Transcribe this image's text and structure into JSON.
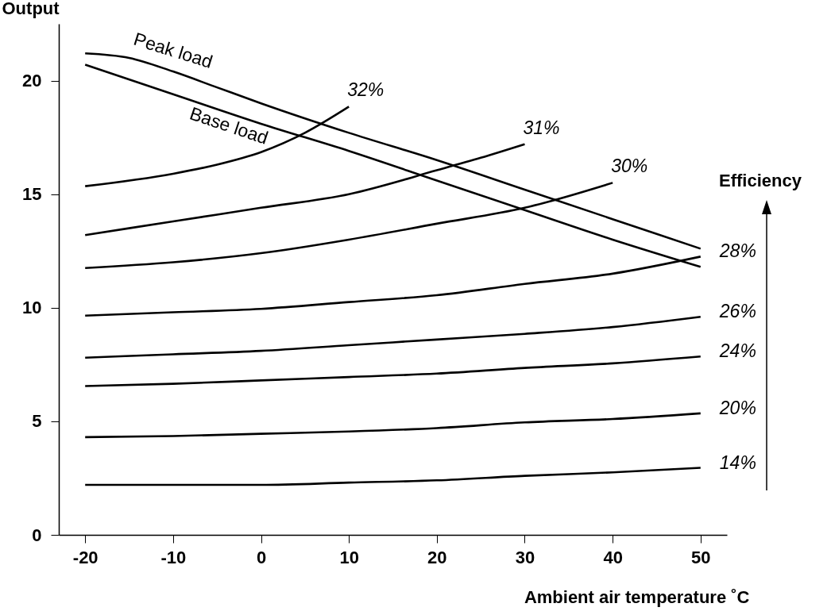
{
  "chart_data": {
    "type": "line",
    "xlabel": "Ambient air temperature ˚C",
    "ylabel": "Output",
    "annotations": [
      "Efficiency"
    ],
    "xlim": [
      -23,
      53
    ],
    "ylim": [
      0,
      22.5
    ],
    "xticks": [
      -20,
      -10,
      0,
      10,
      20,
      30,
      40,
      50
    ],
    "yticks": [
      0,
      5,
      10,
      15,
      20
    ],
    "grid": false,
    "line_style": "solid",
    "series": [
      {
        "name": "Peak load",
        "color": "#000000",
        "x": [
          -20,
          -15,
          -10,
          -5,
          0,
          10,
          20,
          30,
          40,
          50
        ],
        "values": [
          21.2,
          21.0,
          20.4,
          19.7,
          19.0,
          17.7,
          16.5,
          15.2,
          13.9,
          12.6
        ]
      },
      {
        "name": "Base load",
        "color": "#000000",
        "x": [
          -20,
          -10,
          0,
          10,
          20,
          30,
          40,
          50
        ],
        "values": [
          20.7,
          19.4,
          18.1,
          16.9,
          15.6,
          14.3,
          13.0,
          11.8
        ]
      },
      {
        "name": "32%",
        "color": "#000000",
        "x": [
          -20,
          -10,
          -5,
          0,
          5,
          10
        ],
        "values": [
          15.35,
          15.9,
          16.3,
          16.85,
          17.7,
          18.85
        ]
      },
      {
        "name": "31%",
        "color": "#000000",
        "x": [
          -20,
          -10,
          0,
          10,
          20,
          25,
          30
        ],
        "values": [
          13.2,
          13.8,
          14.4,
          15.0,
          16.05,
          16.6,
          17.2
        ]
      },
      {
        "name": "30%",
        "color": "#000000",
        "x": [
          -20,
          -10,
          0,
          10,
          20,
          30,
          40
        ],
        "values": [
          11.75,
          12.0,
          12.4,
          13.0,
          13.7,
          14.4,
          15.5
        ]
      },
      {
        "name": "28%",
        "color": "#000000",
        "x": [
          -20,
          -10,
          0,
          10,
          20,
          30,
          40,
          50
        ],
        "values": [
          9.65,
          9.8,
          9.95,
          10.25,
          10.55,
          11.05,
          11.5,
          12.25
        ]
      },
      {
        "name": "26%",
        "color": "#000000",
        "x": [
          -20,
          -10,
          0,
          10,
          20,
          30,
          40,
          50
        ],
        "values": [
          7.8,
          7.95,
          8.1,
          8.35,
          8.6,
          8.85,
          9.15,
          9.6
        ]
      },
      {
        "name": "24%",
        "color": "#000000",
        "x": [
          -20,
          -10,
          0,
          10,
          20,
          30,
          40,
          50
        ],
        "values": [
          6.55,
          6.65,
          6.8,
          6.95,
          7.1,
          7.35,
          7.55,
          7.85
        ]
      },
      {
        "name": "20%",
        "color": "#000000",
        "x": [
          -20,
          -10,
          0,
          10,
          20,
          30,
          40,
          50
        ],
        "values": [
          4.3,
          4.35,
          4.45,
          4.55,
          4.7,
          4.95,
          5.1,
          5.35
        ]
      },
      {
        "name": "14%",
        "color": "#000000",
        "x": [
          -20,
          -10,
          0,
          10,
          20,
          30,
          40,
          50
        ],
        "values": [
          2.2,
          2.2,
          2.2,
          2.3,
          2.4,
          2.6,
          2.75,
          2.95
        ]
      }
    ]
  }
}
